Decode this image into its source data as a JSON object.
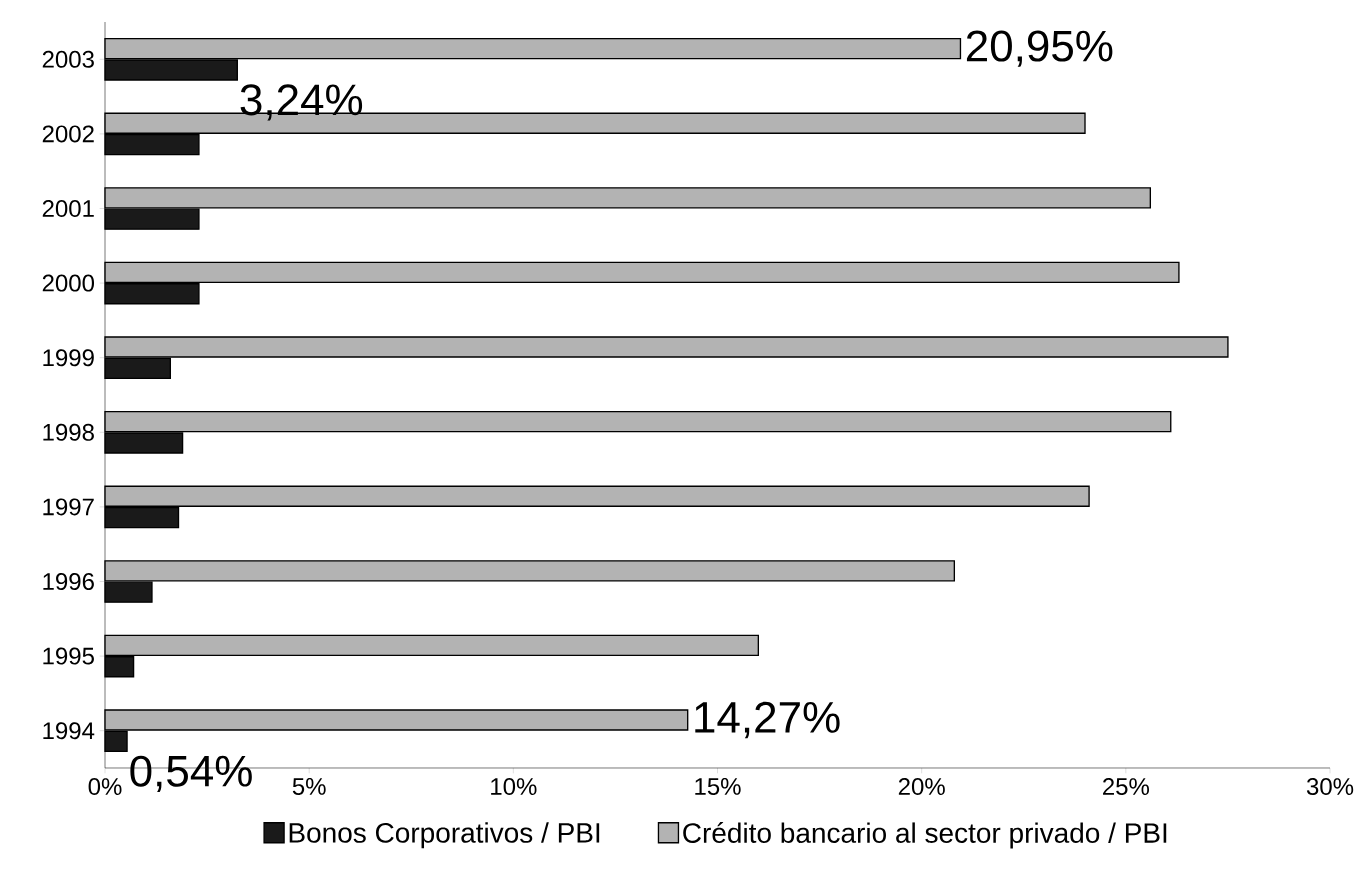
{
  "chart_data": {
    "type": "bar",
    "orientation": "horizontal",
    "categories": [
      "2003",
      "2002",
      "2001",
      "2000",
      "1999",
      "1998",
      "1997",
      "1996",
      "1995",
      "1994"
    ],
    "series": [
      {
        "name": "Bonos Corporativos / PBI",
        "color": "#1a1a1a",
        "values": [
          3.24,
          2.3,
          2.3,
          2.3,
          1.6,
          1.9,
          1.8,
          1.15,
          0.7,
          0.54
        ],
        "value_labels": [
          "3,24%",
          null,
          null,
          null,
          null,
          null,
          null,
          null,
          null,
          "0,54%"
        ]
      },
      {
        "name": "Crédito bancario al sector privado / PBI",
        "color": "#b3b3b3",
        "values": [
          20.95,
          24.0,
          25.6,
          26.3,
          27.5,
          26.1,
          24.1,
          20.8,
          16.0,
          14.27
        ],
        "value_labels": [
          "20,95%",
          null,
          null,
          null,
          null,
          null,
          null,
          null,
          null,
          "14,27%"
        ]
      }
    ],
    "xlim": [
      0,
      30
    ],
    "xticks": [
      {
        "value": 0,
        "label": "0%"
      },
      {
        "value": 5,
        "label": "5%"
      },
      {
        "value": 10,
        "label": "10%"
      },
      {
        "value": 15,
        "label": "15%"
      },
      {
        "value": 20,
        "label": "20%"
      },
      {
        "value": 25,
        "label": "25%"
      },
      {
        "value": 30,
        "label": "30%"
      }
    ],
    "legend": "bottom"
  }
}
